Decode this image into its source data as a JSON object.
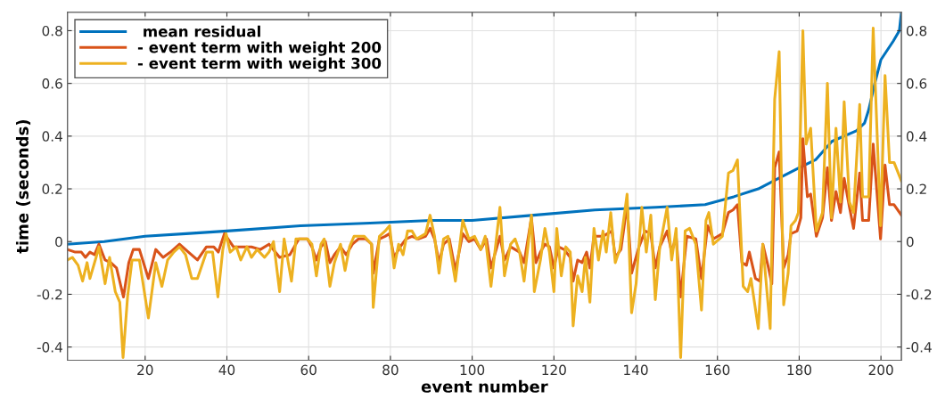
{
  "chart_data": {
    "type": "line",
    "xlabel": "event number",
    "ylabel": "time (seconds)",
    "xlim": [
      1,
      205
    ],
    "ylim": [
      -0.45,
      0.87
    ],
    "xticks": [
      20,
      40,
      60,
      80,
      100,
      120,
      140,
      160,
      180,
      200
    ],
    "yticks": [
      -0.4,
      -0.2,
      0,
      0.2,
      0.4,
      0.6,
      0.8
    ],
    "y2lim": [
      -0.45,
      0.87
    ],
    "y2ticks": [
      -0.4,
      -0.2,
      0,
      0.2,
      0.4,
      0.6,
      0.8
    ],
    "grid": true,
    "legend": "top left",
    "marker": "none",
    "line_style": "solid",
    "series": [
      {
        "name": " mean residual",
        "color": "#0072bd",
        "x": [
          1,
          10,
          20,
          30,
          40,
          58,
          75,
          90,
          100,
          115,
          130,
          145,
          157,
          164,
          170,
          175,
          180,
          184,
          188,
          194,
          196,
          197,
          198.5,
          200,
          203,
          204.5,
          205
        ],
        "values": [
          -0.01,
          0.0,
          0.02,
          0.03,
          0.04,
          0.06,
          0.07,
          0.08,
          0.08,
          0.1,
          0.12,
          0.13,
          0.14,
          0.17,
          0.2,
          0.24,
          0.28,
          0.31,
          0.38,
          0.42,
          0.45,
          0.5,
          0.6,
          0.69,
          0.76,
          0.8,
          0.87
        ]
      },
      {
        "name": "- event term with weight 200",
        "color": "#d95319",
        "x": [
          1,
          2.9,
          4.4,
          5.4,
          6.5,
          7.6,
          8.7,
          10.2,
          11.6,
          13,
          14.7,
          16,
          17.1,
          18.6,
          20.8,
          22.6,
          24.4,
          26.2,
          28.4,
          30.6,
          32.8,
          35,
          36.8,
          37.9,
          39.4,
          41.6,
          43.8,
          46,
          48.2,
          50.3,
          52.9,
          55.4,
          57.6,
          59.7,
          60.8,
          61.9,
          63,
          64.1,
          65.2,
          66.3,
          67.8,
          69.2,
          70.7,
          72.2,
          74,
          75.4,
          75.8,
          77.3,
          78.7,
          79.8,
          80.9,
          82.4,
          83.8,
          85.3,
          86.8,
          88.6,
          89.7,
          90.8,
          91.9,
          93,
          94.4,
          95.9,
          97.7,
          99.2,
          100.6,
          102.1,
          103.5,
          104.6,
          106.8,
          107.9,
          109.4,
          111.6,
          112.7,
          114.5,
          115.6,
          116.7,
          117.8,
          118.9,
          120,
          121.1,
          122.5,
          124,
          124.7,
          125.8,
          126.9,
          128,
          128.8,
          129.8,
          132,
          134.2,
          135,
          136.4,
          137.9,
          139,
          140.8,
          142.3,
          143.7,
          144.8,
          145.9,
          147.7,
          148.8,
          149.9,
          151,
          152.5,
          154.7,
          156.1,
          157.6,
          159,
          161.2,
          162.7,
          163.8,
          164.9,
          166,
          167.1,
          167.8,
          169.3,
          170.4,
          171.1,
          172.5,
          173.3,
          174,
          175.1,
          176.2,
          177.3,
          178,
          179.5,
          180.4,
          180.9,
          182,
          182.8,
          184.2,
          185.7,
          186.9,
          187.9,
          189,
          190.1,
          191,
          192.3,
          193.3,
          194.8,
          195.5,
          197,
          198.1,
          199.9,
          201,
          202.1,
          203.2,
          205
        ],
        "values": [
          -0.03,
          -0.04,
          -0.04,
          -0.06,
          -0.04,
          -0.05,
          -0.01,
          -0.07,
          -0.08,
          -0.1,
          -0.21,
          -0.08,
          -0.03,
          -0.03,
          -0.14,
          -0.03,
          -0.06,
          -0.04,
          -0.01,
          -0.04,
          -0.07,
          -0.02,
          -0.02,
          -0.04,
          0.03,
          -0.02,
          -0.02,
          -0.02,
          -0.03,
          -0.01,
          -0.06,
          -0.05,
          0.01,
          0.01,
          -0.02,
          -0.07,
          -0.02,
          0.0,
          -0.08,
          -0.05,
          -0.02,
          -0.05,
          -0.01,
          0.01,
          0.01,
          -0.01,
          -0.12,
          0.01,
          0.02,
          0.03,
          -0.06,
          -0.02,
          0.01,
          0.02,
          0.01,
          0.02,
          0.05,
          0.01,
          -0.08,
          -0.01,
          0.01,
          -0.11,
          0.03,
          0.0,
          0.01,
          -0.03,
          0.01,
          -0.1,
          0.02,
          -0.07,
          -0.02,
          -0.04,
          -0.08,
          0.09,
          -0.08,
          -0.04,
          -0.01,
          -0.02,
          -0.1,
          -0.02,
          -0.03,
          -0.06,
          -0.15,
          -0.07,
          -0.08,
          -0.04,
          -0.1,
          0.02,
          0.02,
          0.04,
          -0.06,
          -0.03,
          0.14,
          -0.12,
          -0.02,
          0.04,
          0.03,
          -0.1,
          -0.02,
          0.04,
          -0.04,
          0.02,
          -0.21,
          0.02,
          0.01,
          -0.14,
          0.06,
          0.01,
          0.03,
          0.11,
          0.12,
          0.14,
          -0.08,
          -0.09,
          -0.04,
          -0.14,
          -0.15,
          -0.01,
          -0.1,
          -0.16,
          0.28,
          0.34,
          -0.1,
          -0.05,
          0.03,
          0.04,
          0.09,
          0.39,
          0.17,
          0.18,
          0.02,
          0.09,
          0.28,
          0.08,
          0.19,
          0.11,
          0.24,
          0.13,
          0.05,
          0.26,
          0.08,
          0.08,
          0.37,
          0.01,
          0.29,
          0.14,
          0.14,
          0.1
        ]
      },
      {
        "name": "- event term with weight 300",
        "color": "#edb120",
        "x": [
          1,
          2.2,
          3.6,
          4.7,
          5.8,
          6.5,
          8,
          8.7,
          10.2,
          11.3,
          12.7,
          13.8,
          14.6,
          15.7,
          16.8,
          18.6,
          20.8,
          22.6,
          24.1,
          25.5,
          27,
          28.4,
          29.9,
          31.4,
          32.8,
          35,
          36.5,
          37.8,
          39,
          39.8,
          40.8,
          42.3,
          43.4,
          44.9,
          46,
          47.4,
          49.2,
          50.3,
          51.4,
          52.9,
          54,
          55.8,
          56.9,
          58.4,
          59.7,
          60.8,
          61.9,
          63,
          63.8,
          65.2,
          66.3,
          67.8,
          68.9,
          70,
          71.1,
          72.2,
          73.6,
          75.4,
          75.8,
          77.3,
          78.7,
          79.8,
          80.9,
          82,
          83.1,
          84.2,
          85.3,
          86.4,
          87.5,
          88.6,
          89.7,
          90.8,
          91.9,
          93,
          94.1,
          95.9,
          97.7,
          99.2,
          100.6,
          102.1,
          103.2,
          104.6,
          106.8,
          107.9,
          109.4,
          110.5,
          111.6,
          112.7,
          114.5,
          115.2,
          116.7,
          117.8,
          118.9,
          120,
          120.7,
          121.8,
          122.9,
          124,
          124.7,
          125.8,
          126.9,
          127.7,
          128.8,
          129.8,
          130.9,
          132,
          132.8,
          133.9,
          135,
          136.1,
          137.9,
          139,
          140.1,
          141.5,
          142.6,
          143.7,
          144.8,
          145.9,
          147.7,
          148.8,
          149.9,
          151,
          152.1,
          153.2,
          154.7,
          156.1,
          157.2,
          157.9,
          159,
          161.2,
          162.7,
          163.8,
          164.9,
          166.3,
          167.4,
          168.2,
          170,
          171.1,
          172.9,
          174,
          175.1,
          176.2,
          177.3,
          178,
          179.1,
          179.8,
          180.9,
          181.7,
          182.8,
          184.2,
          185.7,
          186.9,
          187.9,
          189,
          190.1,
          191,
          192.3,
          193.3,
          194.8,
          195.5,
          197,
          198.1,
          199.9,
          201,
          202.1,
          203.2,
          205
        ],
        "values": [
          -0.07,
          -0.06,
          -0.09,
          -0.15,
          -0.08,
          -0.14,
          -0.06,
          -0.02,
          -0.16,
          -0.06,
          -0.19,
          -0.23,
          -0.44,
          -0.21,
          -0.07,
          -0.07,
          -0.29,
          -0.08,
          -0.17,
          -0.07,
          -0.04,
          -0.02,
          -0.05,
          -0.14,
          -0.14,
          -0.04,
          -0.04,
          -0.21,
          -0.03,
          0.03,
          -0.04,
          -0.02,
          -0.07,
          -0.02,
          -0.06,
          -0.03,
          -0.06,
          -0.04,
          0.0,
          -0.19,
          0.01,
          -0.15,
          0.01,
          0.01,
          0.01,
          -0.01,
          -0.13,
          -0.01,
          0.01,
          -0.17,
          -0.08,
          -0.01,
          -0.11,
          -0.02,
          0.02,
          0.02,
          0.02,
          -0.01,
          -0.25,
          0.02,
          0.04,
          0.06,
          -0.1,
          -0.01,
          -0.05,
          0.04,
          0.04,
          0.01,
          0.02,
          0.03,
          0.1,
          0.02,
          -0.12,
          0.01,
          0.02,
          -0.15,
          0.08,
          0.01,
          0.02,
          -0.03,
          0.02,
          -0.17,
          0.13,
          -0.13,
          -0.01,
          0.01,
          -0.04,
          -0.15,
          0.1,
          -0.19,
          -0.07,
          0.05,
          -0.04,
          -0.19,
          0.05,
          -0.13,
          -0.02,
          -0.04,
          -0.32,
          -0.13,
          -0.19,
          -0.06,
          -0.23,
          0.05,
          -0.07,
          0.04,
          -0.04,
          0.11,
          -0.08,
          -0.03,
          0.18,
          -0.27,
          -0.16,
          0.13,
          -0.04,
          0.1,
          -0.22,
          -0.02,
          0.13,
          -0.07,
          0.05,
          -0.44,
          0.04,
          0.05,
          -0.01,
          -0.26,
          0.08,
          0.11,
          -0.01,
          0.02,
          0.26,
          0.27,
          0.31,
          -0.17,
          -0.19,
          -0.14,
          -0.33,
          -0.01,
          -0.33,
          0.54,
          0.72,
          -0.24,
          -0.12,
          0.06,
          0.08,
          0.11,
          0.8,
          0.37,
          0.43,
          0.04,
          0.11,
          0.6,
          0.09,
          0.43,
          0.15,
          0.53,
          0.15,
          0.11,
          0.52,
          0.17,
          0.17,
          0.81,
          0.06,
          0.63,
          0.3,
          0.3,
          0.23
        ]
      }
    ]
  }
}
